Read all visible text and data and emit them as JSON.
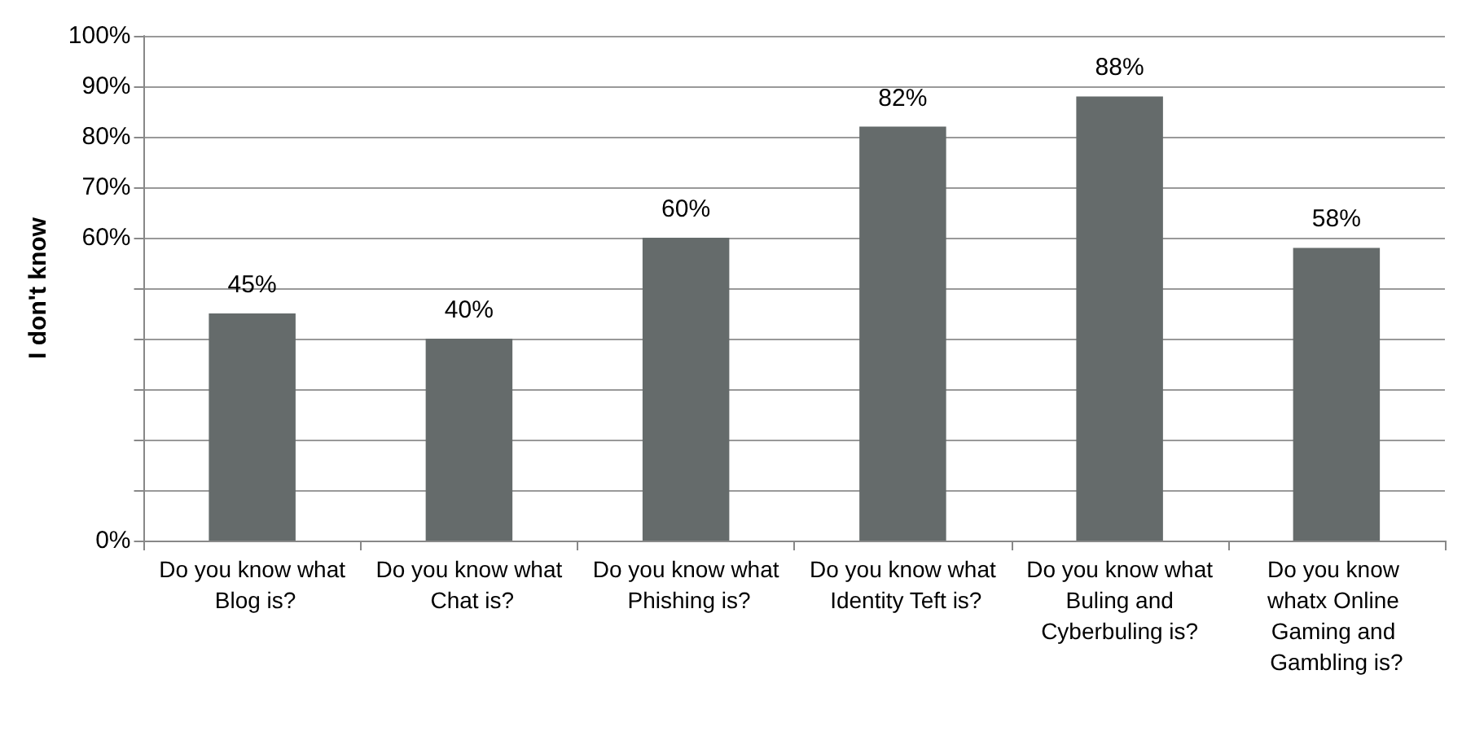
{
  "chart_data": {
    "type": "bar",
    "ylabel": "I don't know",
    "categories": [
      "Do you know what Blog is?",
      "Do you know what Chat is?",
      "Do you know what Phishing is?",
      "Do you know what Identity Teft is?",
      "Do you know what Buling and Cyberbuling is?",
      "Do you know whatx Online Gaming and Gambling is?"
    ],
    "values": [
      45,
      40,
      60,
      82,
      88,
      58
    ],
    "value_labels": [
      "45%",
      "40%",
      "60%",
      "82%",
      "88%",
      "58%"
    ],
    "color": "#656b6b",
    "ylim": [
      0,
      100
    ],
    "yticks": [
      {
        "value": 0,
        "label": "0%"
      },
      {
        "value": 10,
        "label": null
      },
      {
        "value": 20,
        "label": null
      },
      {
        "value": 30,
        "label": null
      },
      {
        "value": 40,
        "label": null
      },
      {
        "value": 50,
        "label": null
      },
      {
        "value": 60,
        "label": "60%"
      },
      {
        "value": 70,
        "label": "70%"
      },
      {
        "value": 80,
        "label": "80%"
      },
      {
        "value": 90,
        "label": "90%"
      },
      {
        "value": 100,
        "label": "100%"
      }
    ],
    "grid": "y"
  }
}
